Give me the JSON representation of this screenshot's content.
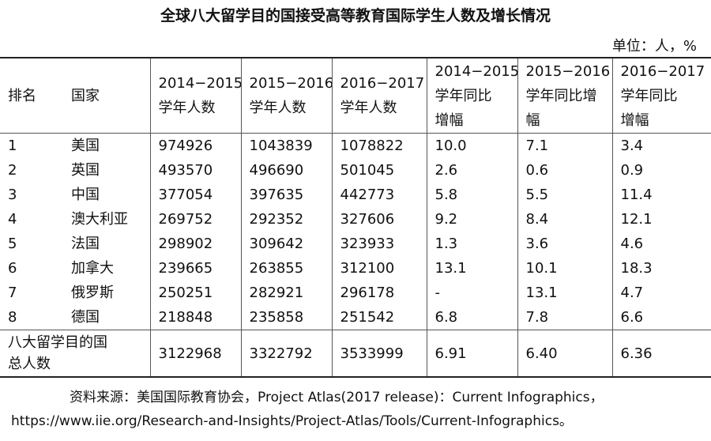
{
  "title": "全球八大留学目的国接受高等教育国际学生人数及增长情况",
  "unit": "单位：人，%",
  "table": {
    "header": [
      [
        "排名"
      ],
      [
        "国家"
      ],
      [
        "2014−2015",
        "学年人数"
      ],
      [
        "2015−2016",
        "学年人数"
      ],
      [
        "2016−2017",
        "学年人数"
      ],
      [
        "2014−2015",
        "学年同比",
        "增幅"
      ],
      [
        "2015−2016",
        "学年同比增",
        "幅"
      ],
      [
        "2016−2017",
        "学年同比",
        "增幅"
      ]
    ],
    "rows": [
      [
        "1",
        "美国",
        "974926",
        "1043839",
        "1078822",
        "10.0",
        "7.1",
        "3.4"
      ],
      [
        "2",
        "英国",
        "493570",
        "496690",
        "501045",
        "2.6",
        "0.6",
        "0.9"
      ],
      [
        "3",
        "中国",
        "377054",
        "397635",
        "442773",
        "5.8",
        "5.5",
        "11.4"
      ],
      [
        "4",
        "澳大利亚",
        "269752",
        "292352",
        "327606",
        "9.2",
        "8.4",
        "12.1"
      ],
      [
        "5",
        "法国",
        "298902",
        "309642",
        "323933",
        "1.3",
        "3.6",
        "4.6"
      ],
      [
        "6",
        "加拿大",
        "239665",
        "263855",
        "312100",
        "13.1",
        "10.1",
        "18.3"
      ],
      [
        "7",
        "俄罗斯",
        "250251",
        "282921",
        "296178",
        "-",
        "13.1",
        "4.7"
      ],
      [
        "8",
        "德国",
        "218848",
        "235858",
        "251542",
        "6.8",
        "7.8",
        "6.6"
      ]
    ],
    "total": {
      "label": [
        "八大留学目的国",
        "总人数"
      ],
      "values": [
        "3122968",
        "3322792",
        "3533999",
        "6.91",
        "6.40",
        "6.36"
      ]
    }
  },
  "source": [
    "资料来源：美国国际教育协会，Project Atlas(2017 release)：Current Infographics，",
    "https://www.iie.org/Research-and-Insights/Project-Atlas/Tools/Current-Infographics。"
  ]
}
